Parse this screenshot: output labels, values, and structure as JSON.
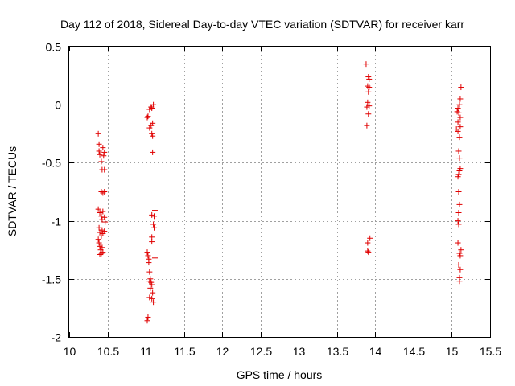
{
  "colors": {
    "marker": "#e00000",
    "frame": "#000000",
    "grid": "#a0a0a0",
    "background": "#ffffff"
  },
  "chart_data": {
    "type": "scatter",
    "title": "Day 112 of 2018, Sidereal Day-to-day VTEC variation (SDTVAR) for receiver karr",
    "xlabel": "GPS time / hours",
    "ylabel": "SDTVAR / TECUs",
    "xlim": [
      10,
      15.5
    ],
    "ylim": [
      -2,
      0.5
    ],
    "xticks": [
      10,
      10.5,
      11,
      11.5,
      12,
      12.5,
      13,
      13.5,
      14,
      14.5,
      15,
      15.5
    ],
    "xtick_labels": [
      "10",
      "10.5",
      "11",
      "11.5",
      "12",
      "12.5",
      "13",
      "13.5",
      "14",
      "14.5",
      "15",
      "15.5"
    ],
    "yticks": [
      0.5,
      0,
      -0.5,
      -1,
      -1.5,
      -2
    ],
    "ytick_labels": [
      "0.5",
      "0",
      "-0.5",
      "-1",
      "-1.5",
      "-2"
    ],
    "grid": true,
    "marker": "plus",
    "series": [
      {
        "name": "karr",
        "points": [
          [
            10.38,
            -0.25
          ],
          [
            10.39,
            -0.34
          ],
          [
            10.39,
            -0.4
          ],
          [
            10.4,
            -0.43
          ],
          [
            10.42,
            -0.49
          ],
          [
            10.44,
            -0.37
          ],
          [
            10.45,
            -0.44
          ],
          [
            10.46,
            -0.41
          ],
          [
            10.43,
            -0.56
          ],
          [
            10.46,
            -0.56
          ],
          [
            10.42,
            -0.75
          ],
          [
            10.44,
            -0.76
          ],
          [
            10.46,
            -0.75
          ],
          [
            10.38,
            -0.9
          ],
          [
            10.4,
            -0.93
          ],
          [
            10.42,
            -0.96
          ],
          [
            10.43,
            -0.99
          ],
          [
            10.44,
            -0.92
          ],
          [
            10.46,
            -0.97
          ],
          [
            10.47,
            -1.01
          ],
          [
            10.39,
            -1.06
          ],
          [
            10.4,
            -1.1
          ],
          [
            10.42,
            -1.13
          ],
          [
            10.43,
            -1.08
          ],
          [
            10.44,
            -1.11
          ],
          [
            10.46,
            -1.09
          ],
          [
            10.38,
            -1.16
          ],
          [
            10.39,
            -1.19
          ],
          [
            10.4,
            -1.22
          ],
          [
            10.41,
            -1.25
          ],
          [
            10.42,
            -1.28
          ],
          [
            10.44,
            -1.27
          ],
          [
            10.4,
            -1.29
          ],
          [
            10.43,
            -1.23
          ],
          [
            11.02,
            -0.11
          ],
          [
            11.03,
            -0.1
          ],
          [
            11.05,
            -0.04
          ],
          [
            11.07,
            -0.02
          ],
          [
            11.08,
            -0.03
          ],
          [
            11.1,
            0.0
          ],
          [
            11.05,
            -0.2
          ],
          [
            11.07,
            -0.18
          ],
          [
            11.09,
            -0.16
          ],
          [
            11.08,
            -0.25
          ],
          [
            11.09,
            -0.27
          ],
          [
            11.09,
            -0.41
          ],
          [
            11.08,
            -0.95
          ],
          [
            11.11,
            -0.96
          ],
          [
            11.12,
            -0.91
          ],
          [
            11.1,
            -1.03
          ],
          [
            11.11,
            -1.06
          ],
          [
            11.08,
            -1.14
          ],
          [
            11.08,
            -1.18
          ],
          [
            11.02,
            -1.27
          ],
          [
            11.03,
            -1.3
          ],
          [
            11.04,
            -1.33
          ],
          [
            11.04,
            -1.36
          ],
          [
            11.12,
            -1.32
          ],
          [
            11.05,
            -1.44
          ],
          [
            11.06,
            -1.5
          ],
          [
            11.05,
            -1.52
          ],
          [
            11.07,
            -1.53
          ],
          [
            11.08,
            -1.55
          ],
          [
            11.06,
            -1.58
          ],
          [
            11.09,
            -1.62
          ],
          [
            11.05,
            -1.66
          ],
          [
            11.08,
            -1.67
          ],
          [
            11.1,
            -1.7
          ],
          [
            11.03,
            -1.83
          ],
          [
            11.02,
            -1.86
          ],
          [
            13.88,
            0.35
          ],
          [
            13.91,
            0.24
          ],
          [
            13.92,
            0.22
          ],
          [
            13.9,
            0.16
          ],
          [
            13.92,
            0.15
          ],
          [
            13.91,
            0.11
          ],
          [
            13.9,
            0.02
          ],
          [
            13.92,
            -0.01
          ],
          [
            13.89,
            -0.02
          ],
          [
            13.91,
            -0.08
          ],
          [
            13.89,
            -0.18
          ],
          [
            13.9,
            -1.19
          ],
          [
            13.93,
            -1.15
          ],
          [
            13.9,
            -1.26
          ],
          [
            13.91,
            -1.27
          ],
          [
            15.12,
            0.15
          ],
          [
            15.11,
            0.05
          ],
          [
            15.1,
            0.0
          ],
          [
            15.08,
            -0.03
          ],
          [
            15.07,
            -0.06
          ],
          [
            15.09,
            -0.07
          ],
          [
            15.11,
            -0.11
          ],
          [
            15.08,
            -0.15
          ],
          [
            15.11,
            -0.19
          ],
          [
            15.06,
            -0.21
          ],
          [
            15.08,
            -0.23
          ],
          [
            15.1,
            -0.28
          ],
          [
            15.09,
            -0.4
          ],
          [
            15.1,
            -0.46
          ],
          [
            15.11,
            -0.55
          ],
          [
            15.1,
            -0.57
          ],
          [
            15.09,
            -0.6
          ],
          [
            15.08,
            -0.62
          ],
          [
            15.09,
            -0.75
          ],
          [
            15.1,
            -0.86
          ],
          [
            15.09,
            -0.93
          ],
          [
            15.08,
            -1.0
          ],
          [
            15.09,
            -1.03
          ],
          [
            15.08,
            -1.19
          ],
          [
            15.12,
            -1.25
          ],
          [
            15.1,
            -1.28
          ],
          [
            15.11,
            -1.3
          ],
          [
            15.09,
            -1.38
          ],
          [
            15.11,
            -1.42
          ],
          [
            15.1,
            -1.49
          ],
          [
            15.1,
            -1.52
          ]
        ]
      }
    ]
  }
}
